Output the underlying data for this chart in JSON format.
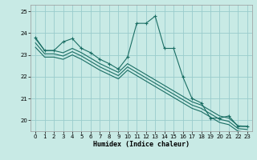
{
  "xlabel": "Humidex (Indice chaleur)",
  "ylabel": "",
  "bg_color": "#c8eae5",
  "grid_color": "#99cccc",
  "line_color": "#1a6e64",
  "xlim": [
    -0.5,
    23.5
  ],
  "ylim": [
    19.5,
    25.3
  ],
  "yticks": [
    20,
    21,
    22,
    23,
    24,
    25
  ],
  "xticks": [
    0,
    1,
    2,
    3,
    4,
    5,
    6,
    7,
    8,
    9,
    10,
    11,
    12,
    13,
    14,
    15,
    16,
    17,
    18,
    19,
    20,
    21,
    22,
    23
  ],
  "series": {
    "main": [
      23.8,
      23.2,
      23.2,
      23.6,
      23.75,
      23.3,
      23.1,
      22.8,
      22.6,
      22.35,
      22.9,
      24.45,
      24.45,
      24.78,
      23.3,
      23.3,
      22.0,
      21.0,
      20.8,
      20.1,
      20.1,
      20.2,
      19.72,
      19.72
    ],
    "line_a": [
      23.75,
      23.2,
      23.2,
      23.1,
      23.3,
      23.1,
      22.85,
      22.6,
      22.4,
      22.2,
      22.6,
      22.35,
      22.1,
      21.85,
      21.6,
      21.35,
      21.1,
      20.85,
      20.7,
      20.45,
      20.2,
      20.1,
      19.75,
      19.72
    ],
    "line_b": [
      23.55,
      23.05,
      23.05,
      22.95,
      23.15,
      22.95,
      22.7,
      22.45,
      22.25,
      22.05,
      22.45,
      22.2,
      21.95,
      21.7,
      21.45,
      21.2,
      20.95,
      20.7,
      20.55,
      20.3,
      20.05,
      19.95,
      19.62,
      19.58
    ],
    "line_c": [
      23.35,
      22.9,
      22.9,
      22.8,
      23.0,
      22.8,
      22.55,
      22.3,
      22.1,
      21.9,
      22.3,
      22.05,
      21.8,
      21.55,
      21.3,
      21.05,
      20.8,
      20.55,
      20.4,
      20.15,
      19.9,
      19.8,
      19.5,
      19.45
    ]
  }
}
